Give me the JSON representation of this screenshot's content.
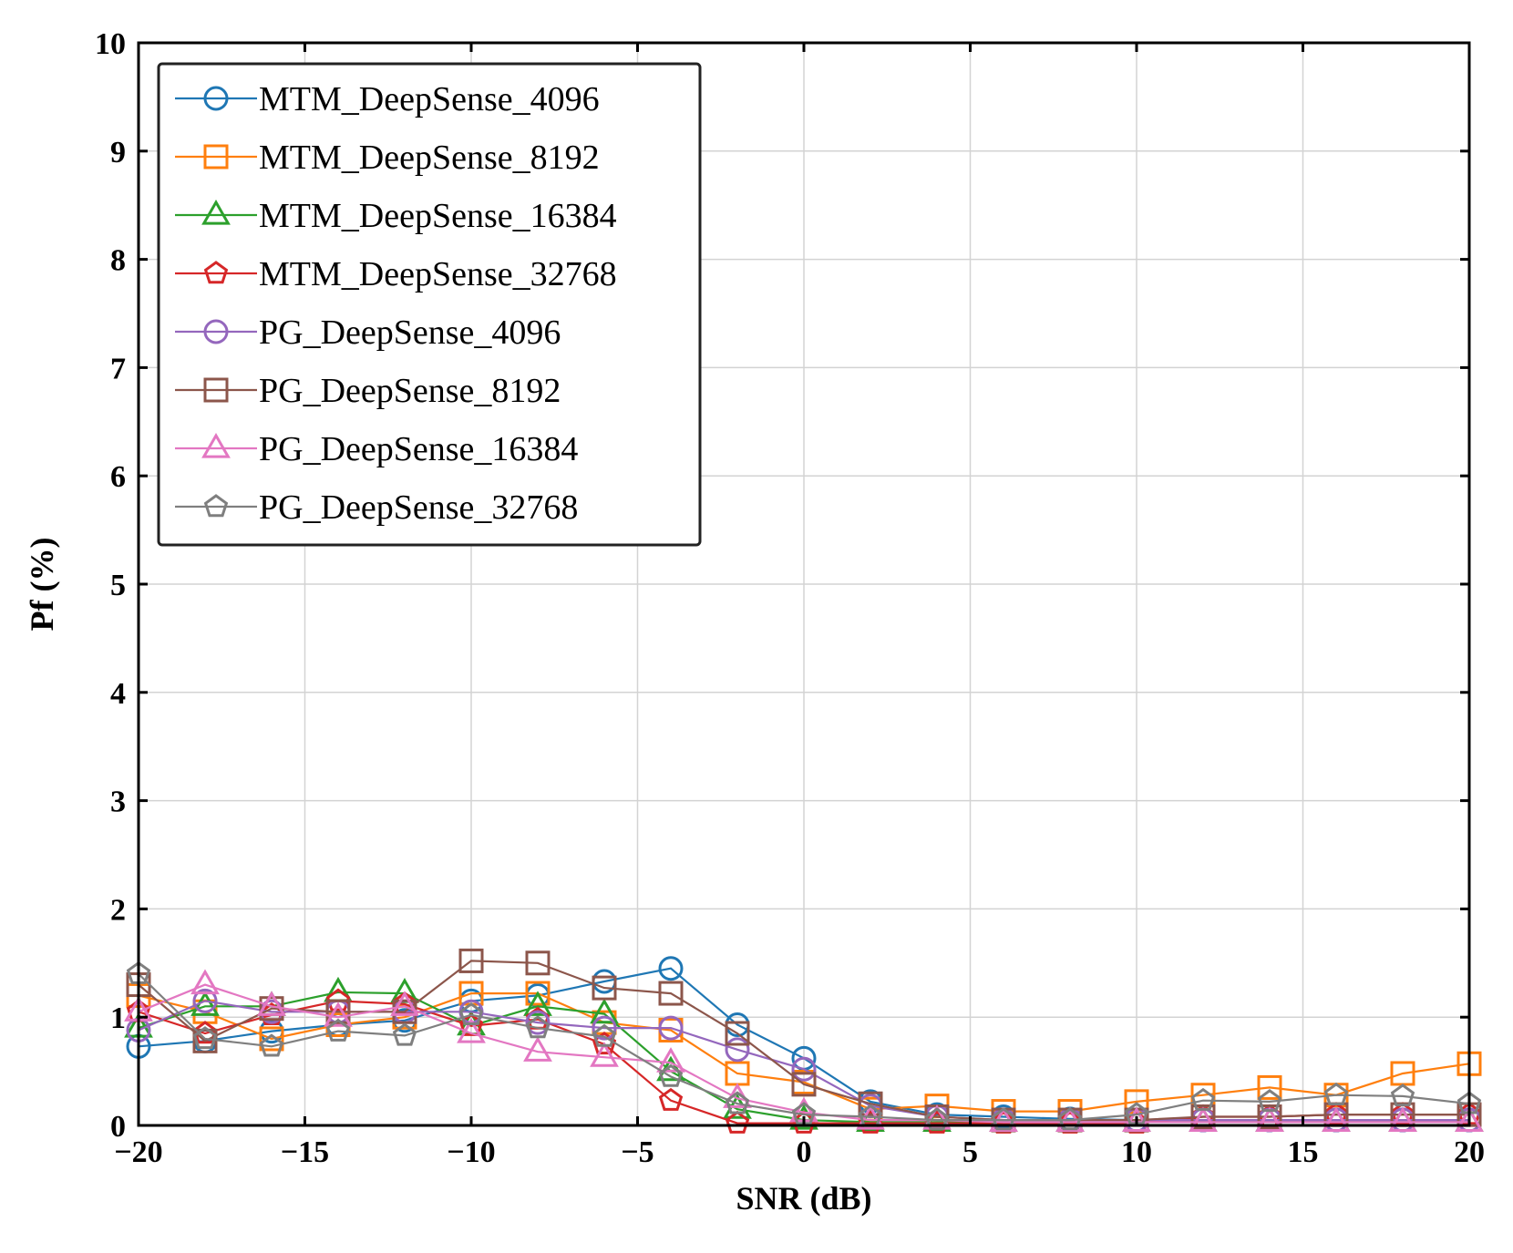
{
  "chart_data": {
    "type": "line",
    "xlabel": "SNR (dB)",
    "ylabel": "Pf (%)",
    "xlim": [
      -20,
      20
    ],
    "ylim": [
      0,
      10
    ],
    "xticks": [
      -20,
      -15,
      -10,
      -5,
      0,
      5,
      10,
      15,
      20
    ],
    "xtick_labels": [
      "−20",
      "−15",
      "−10",
      "−5",
      "0",
      "5",
      "10",
      "15",
      "20"
    ],
    "yticks": [
      0,
      1,
      2,
      3,
      4,
      5,
      6,
      7,
      8,
      9,
      10
    ],
    "ytick_labels": [
      "0",
      "1",
      "2",
      "3",
      "4",
      "5",
      "6",
      "7",
      "8",
      "9",
      "10"
    ],
    "grid": true,
    "legend_position": "top-left",
    "x": [
      -20,
      -18,
      -16,
      -14,
      -12,
      -10,
      -8,
      -6,
      -4,
      -2,
      0,
      2,
      4,
      6,
      8,
      10,
      12,
      14,
      16,
      18,
      20
    ],
    "series": [
      {
        "name": "MTM_DeepSense_4096",
        "color": "#1f77b4",
        "marker": "circle",
        "values": [
          0.73,
          0.78,
          0.87,
          0.93,
          0.97,
          1.15,
          1.2,
          1.33,
          1.45,
          0.93,
          0.62,
          0.22,
          0.1,
          0.08,
          0.06,
          0.05,
          0.05,
          0.05,
          0.05,
          0.05,
          0.05
        ]
      },
      {
        "name": "MTM_DeepSense_8192",
        "color": "#ff7f0e",
        "marker": "square",
        "values": [
          1.2,
          1.05,
          0.8,
          0.93,
          1.0,
          1.22,
          1.22,
          0.95,
          0.88,
          0.48,
          0.4,
          0.15,
          0.18,
          0.13,
          0.13,
          0.22,
          0.28,
          0.35,
          0.28,
          0.48,
          0.57
        ]
      },
      {
        "name": "MTM_DeepSense_16384",
        "color": "#2ca02c",
        "marker": "triangle",
        "values": [
          0.9,
          1.1,
          1.1,
          1.23,
          1.22,
          0.92,
          1.1,
          1.03,
          0.5,
          0.15,
          0.05,
          0.03,
          0.03,
          0.03,
          0.03,
          0.03,
          0.03,
          0.03,
          0.03,
          0.03,
          0.03
        ]
      },
      {
        "name": "MTM_DeepSense_32768",
        "color": "#d62728",
        "marker": "pentagon",
        "values": [
          1.05,
          0.85,
          1.02,
          1.15,
          1.12,
          0.92,
          0.98,
          0.75,
          0.23,
          0.02,
          0.02,
          0.02,
          0.02,
          0.02,
          0.02,
          0.02,
          0.08,
          0.08,
          0.1,
          0.1,
          0.1
        ]
      },
      {
        "name": "PG_DeepSense_4096",
        "color": "#9467bd",
        "marker": "circle",
        "values": [
          0.88,
          1.15,
          1.05,
          1.05,
          1.05,
          1.05,
          0.95,
          0.9,
          0.9,
          0.7,
          0.52,
          0.18,
          0.08,
          0.05,
          0.05,
          0.05,
          0.05,
          0.05,
          0.05,
          0.05,
          0.05
        ]
      },
      {
        "name": "PG_DeepSense_8192",
        "color": "#8c564b",
        "marker": "square",
        "values": [
          1.3,
          0.78,
          1.08,
          1.05,
          1.05,
          1.52,
          1.5,
          1.27,
          1.22,
          0.85,
          0.38,
          0.2,
          0.08,
          0.05,
          0.05,
          0.05,
          0.08,
          0.08,
          0.1,
          0.1,
          0.1
        ]
      },
      {
        "name": "PG_DeepSense_16384",
        "color": "#e377c2",
        "marker": "triangle",
        "values": [
          1.05,
          1.3,
          1.1,
          1.0,
          1.1,
          0.85,
          0.68,
          0.63,
          0.58,
          0.25,
          0.12,
          0.05,
          0.05,
          0.03,
          0.03,
          0.03,
          0.03,
          0.03,
          0.03,
          0.03,
          0.03
        ]
      },
      {
        "name": "PG_DeepSense_32768",
        "color": "#7f7f7f",
        "marker": "pentagon",
        "values": [
          1.4,
          0.8,
          0.73,
          0.87,
          0.83,
          1.02,
          0.9,
          0.82,
          0.45,
          0.2,
          0.1,
          0.08,
          0.05,
          0.05,
          0.05,
          0.1,
          0.23,
          0.22,
          0.28,
          0.27,
          0.2
        ]
      }
    ]
  }
}
